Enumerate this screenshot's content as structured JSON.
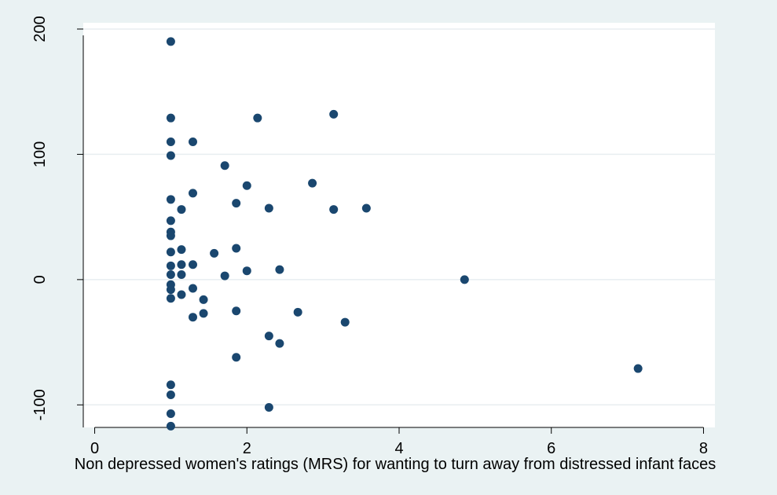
{
  "chart_data": {
    "type": "scatter",
    "title": "",
    "xlabel": "Non depressed women's ratings (MRS) for wanting to turn away from distressed infant faces",
    "ylabel": "",
    "xlim": [
      -0.15,
      8.15
    ],
    "ylim": [
      -118,
      205
    ],
    "x_ticks": [
      0,
      2,
      4,
      6,
      8
    ],
    "x_tick_labels": [
      "0",
      "2",
      "4",
      "6",
      "8"
    ],
    "y_ticks": [
      -100,
      0,
      100,
      200
    ],
    "y_tick_labels": [
      "-100",
      "0",
      "100",
      "200"
    ],
    "grid": "horizontal",
    "marker_color": "#1a476f",
    "points": [
      {
        "x": 1.0,
        "y": 190
      },
      {
        "x": 1.0,
        "y": 129
      },
      {
        "x": 1.0,
        "y": 110
      },
      {
        "x": 1.0,
        "y": 99
      },
      {
        "x": 1.0,
        "y": 64
      },
      {
        "x": 1.0,
        "y": 47
      },
      {
        "x": 1.0,
        "y": 38
      },
      {
        "x": 1.0,
        "y": 35
      },
      {
        "x": 1.0,
        "y": 22
      },
      {
        "x": 1.0,
        "y": 11
      },
      {
        "x": 1.0,
        "y": 4
      },
      {
        "x": 1.0,
        "y": -4
      },
      {
        "x": 1.0,
        "y": -8
      },
      {
        "x": 1.0,
        "y": -15
      },
      {
        "x": 1.0,
        "y": -84
      },
      {
        "x": 1.0,
        "y": -92
      },
      {
        "x": 1.0,
        "y": -107
      },
      {
        "x": 1.0,
        "y": -117
      },
      {
        "x": 1.14,
        "y": 56
      },
      {
        "x": 1.14,
        "y": 24
      },
      {
        "x": 1.14,
        "y": 12
      },
      {
        "x": 1.14,
        "y": 4
      },
      {
        "x": 1.14,
        "y": -12
      },
      {
        "x": 1.29,
        "y": 110
      },
      {
        "x": 1.29,
        "y": 69
      },
      {
        "x": 1.29,
        "y": 12
      },
      {
        "x": 1.29,
        "y": -7
      },
      {
        "x": 1.29,
        "y": -30
      },
      {
        "x": 1.43,
        "y": -16
      },
      {
        "x": 1.43,
        "y": -27
      },
      {
        "x": 1.57,
        "y": 21
      },
      {
        "x": 1.71,
        "y": 91
      },
      {
        "x": 1.71,
        "y": 3
      },
      {
        "x": 1.86,
        "y": 61
      },
      {
        "x": 1.86,
        "y": 25
      },
      {
        "x": 1.86,
        "y": -25
      },
      {
        "x": 1.86,
        "y": -62
      },
      {
        "x": 2.0,
        "y": 75
      },
      {
        "x": 2.0,
        "y": 7
      },
      {
        "x": 2.14,
        "y": 129
      },
      {
        "x": 2.29,
        "y": 57
      },
      {
        "x": 2.29,
        "y": -45
      },
      {
        "x": 2.29,
        "y": -102
      },
      {
        "x": 2.43,
        "y": 8
      },
      {
        "x": 2.43,
        "y": -51
      },
      {
        "x": 2.67,
        "y": -26
      },
      {
        "x": 2.86,
        "y": 77
      },
      {
        "x": 3.14,
        "y": 132
      },
      {
        "x": 3.14,
        "y": 56
      },
      {
        "x": 3.29,
        "y": -34
      },
      {
        "x": 3.57,
        "y": 57
      },
      {
        "x": 4.86,
        "y": 0
      },
      {
        "x": 7.14,
        "y": -71
      }
    ]
  }
}
